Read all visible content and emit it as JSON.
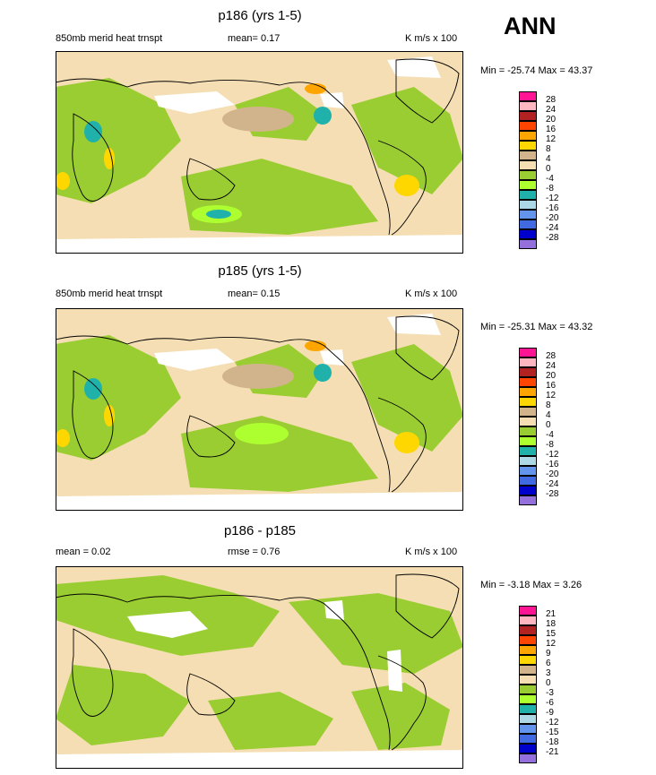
{
  "season": "ANN",
  "palette": {
    "ocean_tan": "#f5deb3",
    "land_outline": "#000000",
    "tan_pos": "#d2b48c",
    "yellow_green": "#9acd32",
    "lime": "#adff2f",
    "teal": "#20b2aa",
    "light_blue": "#add8e6",
    "cornflower": "#6495ed",
    "royal_blue": "#4169e1",
    "navy": "#0000cd",
    "purple": "#9370db",
    "gold": "#ffd700",
    "orange": "#ffa500",
    "orange_red": "#ff4500",
    "firebrick": "#b22222",
    "pink": "#ffb6c1",
    "deep_pink": "#ff1493",
    "white": "#ffffff"
  },
  "panels": [
    {
      "title": "p186 (yrs 1-5)",
      "left": "850mb merid heat trnspt",
      "center": "mean=   0.17",
      "right": "K m/s x 100",
      "minmax": "Min = -25.74  Max =  43.37",
      "colorbar": {
        "labels": [
          "28",
          "24",
          "20",
          "16",
          "12",
          "8",
          "4",
          "0",
          "-4",
          "-8",
          "-12",
          "-16",
          "-20",
          "-24",
          "-28"
        ],
        "colors": [
          "#ff1493",
          "#ffb6c1",
          "#b22222",
          "#ff4500",
          "#ffa500",
          "#ffd700",
          "#d2b48c",
          "#f5deb3",
          "#9acd32",
          "#adff2f",
          "#20b2aa",
          "#add8e6",
          "#6495ed",
          "#4169e1",
          "#0000cd",
          "#9370db"
        ]
      }
    },
    {
      "title": "p185 (yrs 1-5)",
      "left": "850mb merid heat trnspt",
      "center": "mean=   0.15",
      "right": "K m/s x 100",
      "minmax": "Min = -25.31  Max =  43.32",
      "colorbar": {
        "labels": [
          "28",
          "24",
          "20",
          "16",
          "12",
          "8",
          "4",
          "0",
          "-4",
          "-8",
          "-12",
          "-16",
          "-20",
          "-24",
          "-28"
        ],
        "colors": [
          "#ff1493",
          "#ffb6c1",
          "#b22222",
          "#ff4500",
          "#ffa500",
          "#ffd700",
          "#d2b48c",
          "#f5deb3",
          "#9acd32",
          "#adff2f",
          "#20b2aa",
          "#add8e6",
          "#6495ed",
          "#4169e1",
          "#0000cd",
          "#9370db"
        ]
      }
    },
    {
      "title": "p186 - p185",
      "left": "mean =   0.02",
      "center": "rmse =   0.76",
      "right": "K m/s x 100",
      "minmax": "Min =  -3.18  Max =   3.26",
      "colorbar": {
        "labels": [
          "21",
          "18",
          "15",
          "12",
          "9",
          "6",
          "3",
          "0",
          "-3",
          "-6",
          "-9",
          "-12",
          "-15",
          "-18",
          "-21"
        ],
        "colors": [
          "#ff1493",
          "#ffb6c1",
          "#b22222",
          "#ff4500",
          "#ffa500",
          "#ffd700",
          "#d2b48c",
          "#f5deb3",
          "#9acd32",
          "#adff2f",
          "#20b2aa",
          "#add8e6",
          "#6495ed",
          "#4169e1",
          "#0000cd",
          "#9370db"
        ]
      }
    }
  ],
  "chart_data": {
    "type": "heatmap",
    "title": "850mb merid heat trnspt",
    "units": "K m/s x 100",
    "projection": "global cylindrical equidistant",
    "season": "ANN"
  }
}
